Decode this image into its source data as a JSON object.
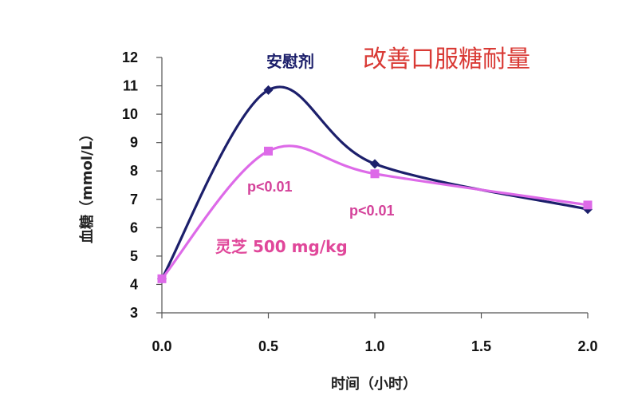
{
  "chart_data": {
    "type": "line",
    "title": "改善口服糖耐量",
    "xlabel": "时间（小时）",
    "ylabel": "血糖（mmol/L）",
    "xlim": [
      0,
      2
    ],
    "ylim": [
      3,
      12
    ],
    "xticks": [
      "0.0",
      "0.5",
      "1.0",
      "1.5",
      "2.0"
    ],
    "yticks": [
      "3",
      "4",
      "5",
      "6",
      "7",
      "8",
      "9",
      "10",
      "11",
      "12"
    ],
    "grid": false,
    "series": [
      {
        "name": "安慰剂",
        "color": "#1c1f6b",
        "marker": "diamond",
        "x": [
          0,
          0.5,
          1.0,
          2.0
        ],
        "y": [
          4.2,
          10.85,
          8.25,
          6.65
        ]
      },
      {
        "name": "灵芝 500 mg/kg",
        "color": "#dd6ae8",
        "marker": "square",
        "x": [
          0,
          0.5,
          1.0,
          2.0
        ],
        "y": [
          4.2,
          8.7,
          7.9,
          6.8
        ]
      }
    ],
    "annotations": [
      "p<0.01",
      "p<0.01"
    ]
  }
}
